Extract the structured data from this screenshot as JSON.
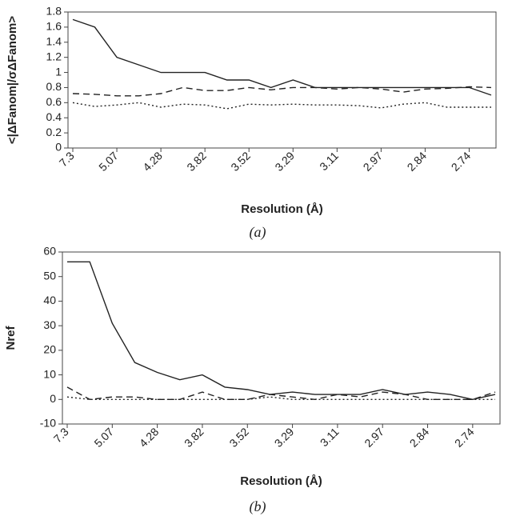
{
  "chart_data": [
    {
      "type": "line",
      "caption": "(a)",
      "xlabel": "Resolution (Å)",
      "ylabel": "<|ΔFanom|/σΔFanom>",
      "categories": [
        "7.3",
        null,
        "5.07",
        null,
        "4.28",
        null,
        "3.82",
        null,
        "3.52",
        null,
        "3.29",
        null,
        "3.11",
        null,
        "2.97",
        null,
        "2.84",
        null,
        "2.74",
        null
      ],
      "ylim": [
        0,
        1.8
      ],
      "yticks": [
        0,
        0.2,
        0.4,
        0.6,
        0.8,
        1,
        1.2,
        1.4,
        1.6,
        1.8
      ],
      "series": [
        {
          "color": "#222",
          "dash": "solid",
          "values": [
            1.7,
            1.6,
            1.2,
            1.1,
            1.0,
            1.0,
            1.0,
            0.9,
            0.9,
            0.8,
            0.9,
            0.8,
            0.8,
            0.8,
            0.8,
            0.8,
            0.8,
            0.8,
            0.8,
            0.7
          ]
        },
        {
          "color": "#222",
          "dash": "dashed",
          "values": [
            0.72,
            0.71,
            0.69,
            0.69,
            0.72,
            0.8,
            0.76,
            0.76,
            0.8,
            0.77,
            0.8,
            0.8,
            0.78,
            0.8,
            0.78,
            0.74,
            0.78,
            0.79,
            0.81,
            0.8
          ]
        },
        {
          "color": "#222",
          "dash": "dotted",
          "values": [
            0.6,
            0.55,
            0.57,
            0.6,
            0.54,
            0.58,
            0.57,
            0.52,
            0.58,
            0.57,
            0.58,
            0.57,
            0.57,
            0.56,
            0.53,
            0.58,
            0.6,
            0.54,
            0.54,
            0.54
          ]
        }
      ]
    },
    {
      "type": "line",
      "caption": "(b)",
      "xlabel": "Resolution (Å)",
      "ylabel": "Nref",
      "categories": [
        "7.3",
        null,
        "5.07",
        null,
        "4.28",
        null,
        "3.82",
        null,
        "3.52",
        null,
        "3.29",
        null,
        "3.11",
        null,
        "2.97",
        null,
        "2.84",
        null,
        "2.74",
        null
      ],
      "ylim": [
        -10,
        60
      ],
      "yticks": [
        -10,
        0,
        10,
        20,
        30,
        40,
        50,
        60
      ],
      "series": [
        {
          "color": "#222",
          "dash": "solid",
          "values": [
            56,
            56,
            31,
            15,
            11,
            8,
            10,
            5,
            4,
            2,
            3,
            2,
            2,
            2,
            4,
            2,
            3,
            2,
            0,
            2
          ]
        },
        {
          "color": "#222",
          "dash": "dashed",
          "values": [
            5,
            0,
            1,
            1,
            0,
            0,
            3,
            0,
            0,
            2,
            1,
            0,
            2,
            1,
            3,
            2,
            0,
            0,
            0,
            3
          ]
        },
        {
          "color": "#222",
          "dash": "dotted",
          "values": [
            1,
            0,
            0,
            0,
            0,
            0,
            0,
            0,
            0,
            1,
            0,
            0,
            0,
            0,
            0,
            0,
            0,
            0,
            0,
            0
          ]
        }
      ]
    }
  ]
}
